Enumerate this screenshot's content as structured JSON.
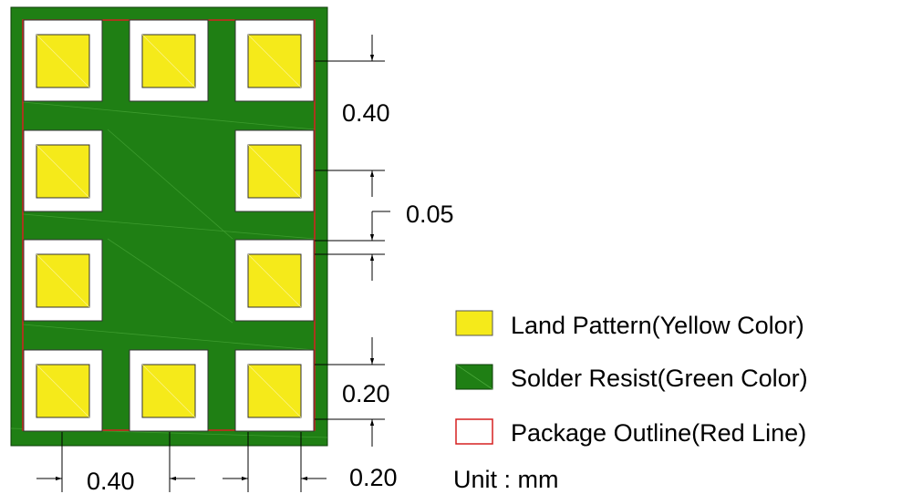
{
  "dimensions": {
    "pitch_vertical": "0.40",
    "gap": "0.05",
    "edge_vertical": "0.20",
    "pitch_horizontal": "0.40",
    "edge_horizontal": "0.20"
  },
  "legend": {
    "land_pattern": "Land Pattern(Yellow Color)",
    "solder_resist": "Solder Resist(Green Color)",
    "package_outline": "Package Outline(Red Line)",
    "unit": "Unit : mm"
  },
  "colors": {
    "land": "#f5ea1a",
    "resist": "#1f7f14",
    "outline": "#d62020",
    "opening": "#ffffff"
  }
}
